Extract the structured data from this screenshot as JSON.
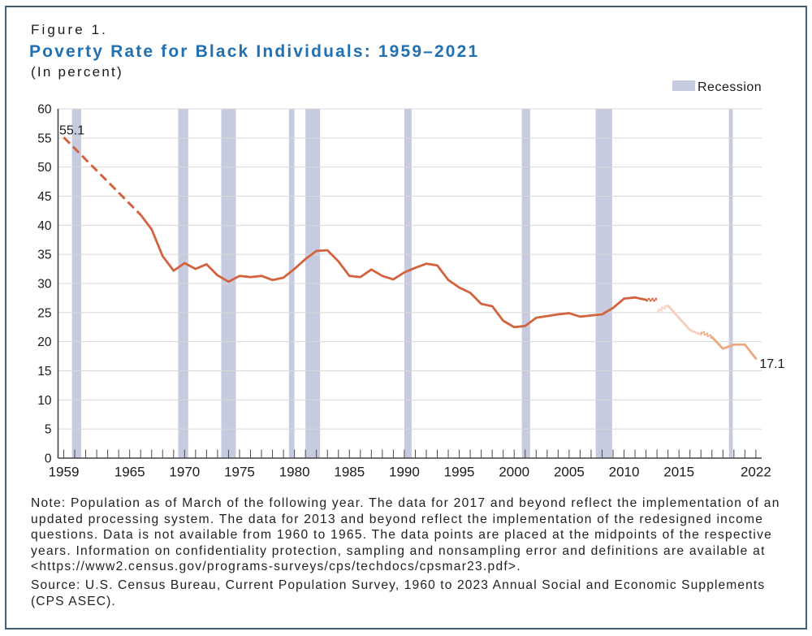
{
  "header": {
    "figure_label": "Figure 1.",
    "title": "Poverty Rate for Black Individuals: 1959–2021",
    "unit_label": "(In percent)"
  },
  "legend": {
    "label": "Recession",
    "swatch_color": "#c6cbe0"
  },
  "colors": {
    "title_blue": "#2070b4",
    "border": "#3f5e76",
    "grid": "#d8d8d8",
    "axis": "#454545",
    "tick": "#4a4a4a",
    "tick_label": "#1a1a1a",
    "recession_band": "#c6cbe0",
    "line_main": "#d2633e",
    "line_redesigned": "#f7cfbc",
    "line_updated": "#eda77e"
  },
  "chart_data": {
    "type": "line",
    "title": "Poverty Rate for Black Individuals: 1959–2021",
    "xlabel": "",
    "ylabel": "(In percent)",
    "ylim": [
      0,
      60
    ],
    "ytick_step": 5,
    "ytick_labels": [
      "0",
      "5",
      "10",
      "15",
      "20",
      "25",
      "30",
      "35",
      "40",
      "45",
      "50",
      "55",
      "60"
    ],
    "xlim": [
      1959,
      2022
    ],
    "xticks_every_year": true,
    "xtick_label_years": [
      1959,
      1965,
      1970,
      1975,
      1980,
      1985,
      1990,
      1995,
      2000,
      2005,
      2010,
      2015,
      2022
    ],
    "xtick_labels": [
      "1959",
      "1965",
      "1970",
      "1975",
      "1980",
      "1985",
      "1990",
      "1995",
      "2000",
      "2005",
      "2010",
      "2015",
      "2022"
    ],
    "grid": "horizontal",
    "legend_position": "top-right",
    "legend_entries": [
      {
        "label": "Recession",
        "color": "#c6cbe0"
      }
    ],
    "recessions": [
      [
        1960.25,
        1961.083
      ],
      [
        1969.917,
        1970.833
      ],
      [
        1973.833,
        1975.167
      ],
      [
        1980.0,
        1980.5
      ],
      [
        1981.5,
        1982.833
      ],
      [
        1990.5,
        1991.167
      ],
      [
        2001.2,
        2001.95
      ],
      [
        2007.917,
        2009.417
      ],
      [
        2020.05,
        2020.4
      ]
    ],
    "series": [
      {
        "name": "interpolated-1959-1966",
        "style": "dashed",
        "color": "#d2633e",
        "years": [
          1959,
          1966
        ],
        "values": [
          55.1,
          41.8
        ]
      },
      {
        "name": "official-1966-2013",
        "style": "solid",
        "color": "#d2633e",
        "checker_range": [
          2012,
          2013
        ],
        "years": [
          1966,
          1967,
          1968,
          1969,
          1970,
          1971,
          1972,
          1973,
          1974,
          1975,
          1976,
          1977,
          1978,
          1979,
          1980,
          1981,
          1982,
          1983,
          1984,
          1985,
          1986,
          1987,
          1988,
          1989,
          1990,
          1991,
          1992,
          1993,
          1994,
          1995,
          1996,
          1997,
          1998,
          1999,
          2000,
          2001,
          2002,
          2003,
          2004,
          2005,
          2006,
          2007,
          2008,
          2009,
          2010,
          2011,
          2012,
          2013
        ],
        "values": [
          41.8,
          39.3,
          34.7,
          32.2,
          33.5,
          32.5,
          33.3,
          31.4,
          30.3,
          31.3,
          31.1,
          31.3,
          30.6,
          31.0,
          32.5,
          34.2,
          35.6,
          35.7,
          33.8,
          31.3,
          31.1,
          32.4,
          31.3,
          30.7,
          31.9,
          32.7,
          33.4,
          33.1,
          30.6,
          29.3,
          28.4,
          26.5,
          26.1,
          23.6,
          22.5,
          22.7,
          24.1,
          24.4,
          24.7,
          24.9,
          24.3,
          24.5,
          24.7,
          25.8,
          27.4,
          27.6,
          27.2,
          27.2
        ]
      },
      {
        "name": "redesigned-income-questions-2013-2017",
        "style": "solid",
        "color": "#f7cfbc",
        "checker_range": [
          2013,
          2014
        ],
        "years": [
          2013,
          2014,
          2015,
          2016,
          2017
        ],
        "values": [
          25.2,
          26.2,
          24.1,
          22.0,
          21.2
        ]
      },
      {
        "name": "updated-processing-system-2017-2022",
        "style": "solid",
        "color": "#eda77e",
        "checker_range": [
          2017,
          2018
        ],
        "years": [
          2017,
          2018,
          2019,
          2020,
          2021,
          2022
        ],
        "values": [
          21.7,
          20.8,
          18.8,
          19.5,
          19.5,
          17.1
        ]
      }
    ],
    "annotations": [
      {
        "label": "55.1",
        "year": 1959,
        "value": 55.1,
        "placement": "start"
      },
      {
        "label": "17.1",
        "year": 2022,
        "value": 17.1,
        "placement": "end"
      }
    ]
  },
  "note_lines": [
    "Note: Population as of March of the following year. The data for 2017 and beyond reflect the implementation of an",
    "updated processing system. The data for 2013 and beyond reflect the implementation of the redesigned income",
    "questions. Data is not available from 1960 to 1965. The data points are placed at the midpoints of the respective",
    "years. Information on confidentiality protection, sampling and nonsampling error and definitions are available at",
    "<https://www2.census.gov/programs-surveys/cps/techdocs/cpsmar23.pdf>."
  ],
  "source_lines": [
    "Source: U.S. Census Bureau, Current Population Survey, 1960 to 2023 Annual Social and Economic Supplements",
    "(CPS ASEC)."
  ]
}
